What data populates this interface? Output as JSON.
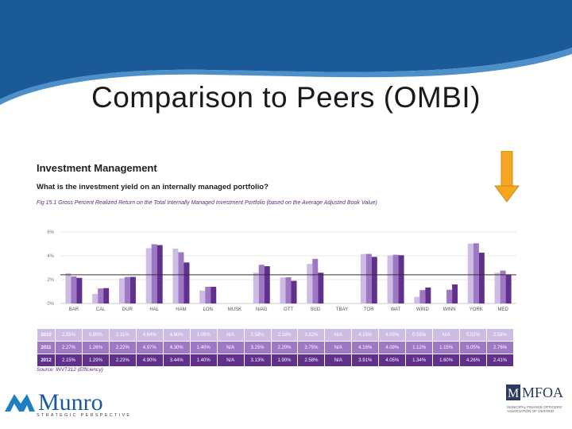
{
  "slide": {
    "title": "Comparison to Peers (OMBI)"
  },
  "report": {
    "section_title": "Investment Management",
    "question": "What is the investment yield on an internally managed portfolio?",
    "figure_caption": "Fig 15.1 Gross Percent Realized Return on the Total Internally Managed Investment Portfolio (based on the Average Adjusted Book Value)",
    "source": "Source: INVT312 (Efficiency)"
  },
  "logos": {
    "munro_name": "Munro",
    "munro_tagline": "STRATEGIC PERSPECTIVE",
    "mfoa_name": "MFOA",
    "mfoa_subtitle": "MUNICIPAL FINANCE OFFICERS' ASSOCIATION OF ONTARIO"
  },
  "colors": {
    "banner": "#1a5a98",
    "banner_light": "#4d8fc8",
    "series_2010": "#cdbde4",
    "series_2011": "#9e78c4",
    "series_2012": "#60308c",
    "arrow": "#f5a623",
    "median_line": "#333333"
  },
  "chart_data": {
    "type": "bar",
    "categories": [
      "BAR",
      "CAL",
      "DUR",
      "HAL",
      "HAM",
      "LON",
      "MUSK",
      "NIAG",
      "OTT",
      "SUD",
      "TBAY",
      "TOR",
      "WAT",
      "WIND",
      "WINN",
      "YORK",
      "MED"
    ],
    "ylim": [
      0,
      6
    ],
    "yticks": [
      "0%",
      "2%",
      "4%",
      "6%"
    ],
    "grid": true,
    "median_reference": 2.41,
    "series": [
      {
        "name": "2010",
        "values": [
          2.55,
          0.8,
          2.11,
          4.64,
          4.6,
          1.09,
          null,
          2.58,
          2.18,
          3.32,
          null,
          4.15,
          4.03,
          0.55,
          null,
          5.02,
          2.58
        ],
        "labels": [
          "2.55%",
          "0.80%",
          "2.11%",
          "4.64%",
          "4.60%",
          "1.09%",
          "N/A",
          "2.58%",
          "2.18%",
          "3.32%",
          "N/A",
          "4.15%",
          "4.03%",
          "0.55%",
          "N/A",
          "5.02%",
          "2.58%"
        ]
      },
      {
        "name": "2011",
        "values": [
          2.27,
          1.26,
          2.22,
          4.97,
          4.3,
          1.4,
          null,
          3.25,
          2.2,
          3.75,
          null,
          4.16,
          4.09,
          1.12,
          1.15,
          5.05,
          2.76
        ],
        "labels": [
          "2.27%",
          "1.26%",
          "2.22%",
          "4.97%",
          "4.30%",
          "1.40%",
          "N/A",
          "3.25%",
          "2.20%",
          "3.75%",
          "N/A",
          "4.16%",
          "4.09%",
          "1.12%",
          "1.15%",
          "5.05%",
          "2.76%"
        ]
      },
      {
        "name": "2012",
        "values": [
          2.15,
          1.29,
          2.23,
          4.9,
          3.44,
          1.4,
          null,
          3.13,
          1.9,
          2.58,
          null,
          3.91,
          4.05,
          1.34,
          1.6,
          4.26,
          2.41
        ],
        "labels": [
          "2.15%",
          "1.29%",
          "2.23%",
          "4.90%",
          "3.44%",
          "1.40%",
          "N/A",
          "3.13%",
          "1.90%",
          "2.58%",
          "N/A",
          "3.91%",
          "4.05%",
          "1.34%",
          "1.60%",
          "4.26%",
          "2.41%"
        ]
      }
    ]
  }
}
